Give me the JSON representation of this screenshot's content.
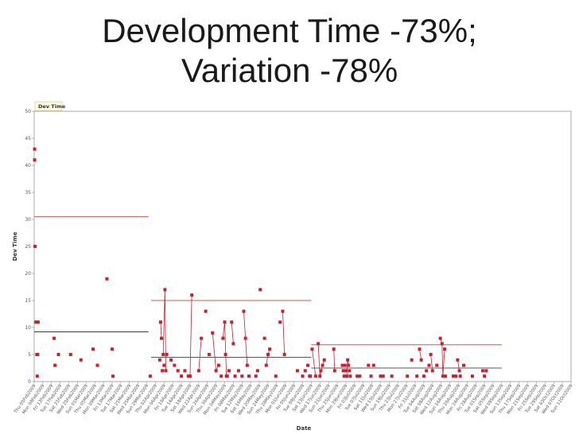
{
  "slide": {
    "title_line1": "Development Time -73%;",
    "title_line2": "Variation -78%"
  },
  "chart_data": {
    "type": "scatter",
    "title": "",
    "legend": "Dev Time",
    "legend_position": "top-left",
    "xlabel": "Date",
    "ylabel": "Dev Time",
    "ylim": [
      0,
      50
    ],
    "yticks": [
      0,
      5,
      10,
      15,
      20,
      25,
      30,
      35,
      40,
      45,
      50
    ],
    "grid": false,
    "colors": {
      "points": "#cc1f2f",
      "connector": "#cc1f2f",
      "limit_lines": "#e05050",
      "mean_lines": "#222222",
      "axis": "#888888"
    },
    "x_tick_labels": [
      "Thu 05Feb2009",
      "Mon 09Feb2009",
      "Fri 13Feb2009",
      "Tue 17Feb2009",
      "Sat 21Feb2009",
      "Wed 25Feb2009",
      "Sun 01Mar2009",
      "Thu 05Mar2009",
      "Mon 09Mar2009",
      "Fri 13Mar2009",
      "Tue 17Mar2009",
      "Sat 21Mar2009",
      "Wed 25Mar2009",
      "Sun 29Mar2009",
      "Thu 02Apr2009",
      "Mon 06Apr2009",
      "Fri 10Apr2009",
      "Tue 14Apr2009",
      "Sat 18Apr2009",
      "Wed 22Apr2009",
      "Sun 26Apr2009",
      "Thu 30Apr2009",
      "Mon 04May2009",
      "Fri 08May2009",
      "Tue 12May2009",
      "Sat 16May2009",
      "Wed 20May2009",
      "Sun 24May2009",
      "Thu 28May2009",
      "Mon 01Jun2009",
      "Fri 05Jun2009",
      "Tue 09Jun2009",
      "Sat 13Jun2009",
      "Wed 17Jun2009",
      "Sun 21Jun2009",
      "Thu 25Jun2009",
      "Mon 29Jun2009",
      "Fri 03Jul2009",
      "Tue 07Jul2009",
      "Sat 11Jul2009",
      "Wed 15Jul2009",
      "Sun 19Jul2009",
      "Thu 23Jul2009",
      "Mon 27Jul2009",
      "Fri 31Jul2009",
      "Tue 04Aug2009",
      "Sat 08Aug2009",
      "Wed 12Aug2009",
      "Sun 16Aug2009",
      "Thu 20Aug2009",
      "Mon 24Aug2009",
      "Fri 28Aug2009",
      "Tue 01Sep2009",
      "Sat 05Sep2009",
      "Wed 09Sep2009",
      "Sun 13Sep2009",
      "Thu 17Sep2009",
      "Mon 21Sep2009",
      "Fri 25Sep2009",
      "Tue 29Sep2009",
      "Sat 03Oct2009",
      "Wed 07Oct2009",
      "Sun 11Oct2009"
    ],
    "phases": [
      {
        "x_start": 0,
        "x_end": 13.2,
        "mean": 9.2,
        "upper_limit": 30.5
      },
      {
        "x_start": 13.5,
        "x_end": 32.0,
        "mean": 4.5,
        "upper_limit": 15.0
      },
      {
        "x_start": 32.0,
        "x_end": 54.0,
        "mean": 2.5,
        "upper_limit": 6.8
      }
    ],
    "series": [
      {
        "name": "Dev Time",
        "points": [
          [
            0.05,
            43
          ],
          [
            0.05,
            41
          ],
          [
            0.1,
            25
          ],
          [
            0.2,
            11
          ],
          [
            0.3,
            5
          ],
          [
            0.35,
            1
          ],
          [
            0.4,
            5
          ],
          [
            0.45,
            11
          ],
          [
            2.3,
            8
          ],
          [
            2.4,
            3
          ],
          [
            2.8,
            5
          ],
          [
            4.2,
            5
          ],
          [
            5.4,
            4
          ],
          [
            6.8,
            6
          ],
          [
            7.3,
            3
          ],
          [
            8.4,
            19
          ],
          [
            9.0,
            6
          ],
          [
            9.1,
            1
          ],
          [
            13.4,
            1
          ],
          [
            14.5,
            4
          ],
          [
            14.6,
            11
          ],
          [
            14.7,
            8
          ],
          [
            14.8,
            2
          ],
          [
            14.9,
            5
          ],
          [
            15.0,
            3
          ],
          [
            15.1,
            17
          ],
          [
            15.2,
            2
          ],
          [
            15.3,
            5
          ],
          [
            15.8,
            4
          ],
          [
            16.2,
            3
          ],
          [
            16.6,
            2
          ],
          [
            17.0,
            1
          ],
          [
            17.4,
            2
          ],
          [
            17.8,
            1
          ],
          [
            18.0,
            1
          ],
          [
            18.2,
            16
          ],
          [
            19.0,
            2
          ],
          [
            19.3,
            8
          ],
          [
            19.8,
            13
          ],
          [
            20.2,
            5
          ],
          [
            20.6,
            9
          ],
          [
            21.0,
            2
          ],
          [
            21.3,
            3
          ],
          [
            21.6,
            1
          ],
          [
            21.8,
            8
          ],
          [
            22.0,
            11
          ],
          [
            22.1,
            5
          ],
          [
            22.2,
            1
          ],
          [
            22.3,
            1
          ],
          [
            22.5,
            2
          ],
          [
            22.8,
            11
          ],
          [
            23.0,
            7
          ],
          [
            23.2,
            1
          ],
          [
            23.6,
            2
          ],
          [
            24.0,
            1
          ],
          [
            24.2,
            13
          ],
          [
            24.4,
            8
          ],
          [
            24.6,
            3
          ],
          [
            24.8,
            1
          ],
          [
            25.6,
            1
          ],
          [
            25.8,
            2
          ],
          [
            26.1,
            17
          ],
          [
            26.6,
            8
          ],
          [
            26.8,
            3
          ],
          [
            27.0,
            5
          ],
          [
            27.2,
            6
          ],
          [
            27.9,
            1
          ],
          [
            28.4,
            11
          ],
          [
            28.7,
            13
          ],
          [
            28.9,
            5
          ],
          [
            30.4,
            2
          ],
          [
            31.0,
            1
          ],
          [
            31.3,
            2
          ],
          [
            31.6,
            3
          ],
          [
            31.8,
            1
          ],
          [
            31.9,
            1
          ],
          [
            32.1,
            6
          ],
          [
            32.5,
            1
          ],
          [
            32.8,
            7
          ],
          [
            33.0,
            1
          ],
          [
            33.1,
            2
          ],
          [
            33.3,
            3
          ],
          [
            33.5,
            4
          ],
          [
            34.6,
            6
          ],
          [
            34.7,
            2
          ],
          [
            35.6,
            3
          ],
          [
            35.7,
            2
          ],
          [
            35.8,
            1
          ],
          [
            35.9,
            3
          ],
          [
            36.0,
            2
          ],
          [
            36.1,
            1
          ],
          [
            36.2,
            4
          ],
          [
            36.3,
            3
          ],
          [
            36.4,
            2
          ],
          [
            36.5,
            1
          ],
          [
            37.3,
            1
          ],
          [
            37.6,
            1
          ],
          [
            38.6,
            3
          ],
          [
            38.9,
            1
          ],
          [
            39.2,
            3
          ],
          [
            40.0,
            1
          ],
          [
            40.3,
            1
          ],
          [
            41.3,
            1
          ],
          [
            43.1,
            1
          ],
          [
            43.6,
            4
          ],
          [
            44.2,
            1
          ],
          [
            44.5,
            6
          ],
          [
            44.7,
            4
          ],
          [
            45.0,
            1
          ],
          [
            45.3,
            2
          ],
          [
            45.6,
            3
          ],
          [
            45.8,
            5
          ],
          [
            46.0,
            2
          ],
          [
            46.5,
            3
          ],
          [
            46.9,
            8
          ],
          [
            47.1,
            7
          ],
          [
            47.2,
            1
          ],
          [
            47.4,
            6
          ],
          [
            47.5,
            1
          ],
          [
            48.4,
            1
          ],
          [
            48.7,
            1
          ],
          [
            48.9,
            4
          ],
          [
            49.1,
            2
          ],
          [
            49.2,
            1
          ],
          [
            49.6,
            3
          ],
          [
            50.6,
            1
          ],
          [
            51.8,
            2
          ],
          [
            52.0,
            1
          ],
          [
            52.2,
            2
          ]
        ],
        "connected_runs": [
          [
            [
              14.6,
              11
            ],
            [
              14.7,
              8
            ]
          ],
          [
            [
              14.9,
              5
            ],
            [
              15.1,
              17
            ],
            [
              15.2,
              2
            ]
          ],
          [
            [
              18.0,
              1
            ],
            [
              18.2,
              16
            ]
          ],
          [
            [
              19.3,
              8
            ],
            [
              19.0,
              2
            ]
          ],
          [
            [
              20.6,
              9
            ],
            [
              21.0,
              2
            ],
            [
              21.3,
              3
            ]
          ],
          [
            [
              21.8,
              8
            ],
            [
              22.0,
              11
            ],
            [
              22.2,
              1
            ]
          ],
          [
            [
              22.8,
              11
            ],
            [
              23.0,
              7
            ]
          ],
          [
            [
              24.2,
              13
            ],
            [
              24.4,
              8
            ],
            [
              24.6,
              3
            ]
          ],
          [
            [
              26.8,
              3
            ],
            [
              27.0,
              5
            ],
            [
              27.2,
              6
            ]
          ],
          [
            [
              28.7,
              13
            ],
            [
              28.9,
              5
            ]
          ],
          [
            [
              32.1,
              6
            ],
            [
              32.5,
              1
            ]
          ],
          [
            [
              32.8,
              7
            ],
            [
              33.0,
              1
            ],
            [
              33.3,
              3
            ],
            [
              33.5,
              4
            ]
          ],
          [
            [
              34.6,
              6
            ],
            [
              34.7,
              2
            ]
          ],
          [
            [
              36.1,
              1
            ],
            [
              36.2,
              4
            ],
            [
              36.3,
              3
            ]
          ],
          [
            [
              44.5,
              6
            ],
            [
              44.7,
              4
            ]
          ],
          [
            [
              45.8,
              5
            ],
            [
              46.0,
              2
            ]
          ],
          [
            [
              46.9,
              8
            ],
            [
              47.1,
              7
            ],
            [
              47.2,
              1
            ],
            [
              47.4,
              6
            ]
          ],
          [
            [
              48.9,
              4
            ],
            [
              49.1,
              2
            ]
          ]
        ]
      }
    ]
  }
}
